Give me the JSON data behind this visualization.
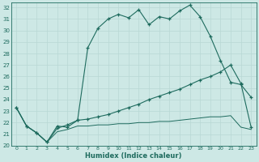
{
  "xlabel": "Humidex (Indice chaleur)",
  "bg_color": "#cde8e5",
  "line_color": "#1e6b5e",
  "grid_color": "#b8d8d4",
  "xlim": [
    -0.5,
    23.5
  ],
  "ylim": [
    20,
    32.4
  ],
  "xticks": [
    0,
    1,
    2,
    3,
    4,
    5,
    6,
    7,
    8,
    9,
    10,
    11,
    12,
    13,
    14,
    15,
    16,
    17,
    18,
    19,
    20,
    21,
    22,
    23
  ],
  "yticks": [
    20,
    21,
    22,
    23,
    24,
    25,
    26,
    27,
    28,
    29,
    30,
    31,
    32
  ],
  "curve1_x": [
    0,
    1,
    2,
    3,
    4,
    5,
    6,
    7,
    8,
    9,
    10,
    11,
    12,
    13,
    14,
    15,
    16,
    17,
    18,
    19,
    20,
    21,
    22,
    23
  ],
  "curve1_y": [
    23.3,
    21.7,
    21.1,
    20.3,
    21.7,
    21.6,
    22.2,
    28.5,
    30.2,
    31.0,
    31.4,
    31.1,
    31.8,
    30.5,
    31.2,
    31.0,
    31.7,
    32.2,
    31.2,
    29.5,
    27.4,
    25.5,
    25.3,
    24.2
  ],
  "curve2_x": [
    0,
    1,
    2,
    3,
    4,
    5,
    6,
    7,
    8,
    9,
    10,
    11,
    12,
    13,
    14,
    15,
    16,
    17,
    18,
    19,
    20,
    21,
    22,
    23
  ],
  "curve2_y": [
    23.3,
    21.7,
    21.1,
    20.3,
    21.5,
    21.8,
    22.2,
    22.3,
    22.5,
    22.7,
    23.0,
    23.3,
    23.6,
    24.0,
    24.3,
    24.6,
    24.9,
    25.3,
    25.7,
    26.0,
    26.4,
    27.0,
    25.4,
    21.6
  ],
  "curve3_x": [
    0,
    1,
    2,
    3,
    4,
    5,
    6,
    7,
    8,
    9,
    10,
    11,
    12,
    13,
    14,
    15,
    16,
    17,
    18,
    19,
    20,
    21,
    22,
    23
  ],
  "curve3_y": [
    23.3,
    21.7,
    21.1,
    20.3,
    21.2,
    21.4,
    21.7,
    21.7,
    21.8,
    21.8,
    21.9,
    21.9,
    22.0,
    22.0,
    22.1,
    22.1,
    22.2,
    22.3,
    22.4,
    22.5,
    22.5,
    22.6,
    21.6,
    21.4
  ]
}
